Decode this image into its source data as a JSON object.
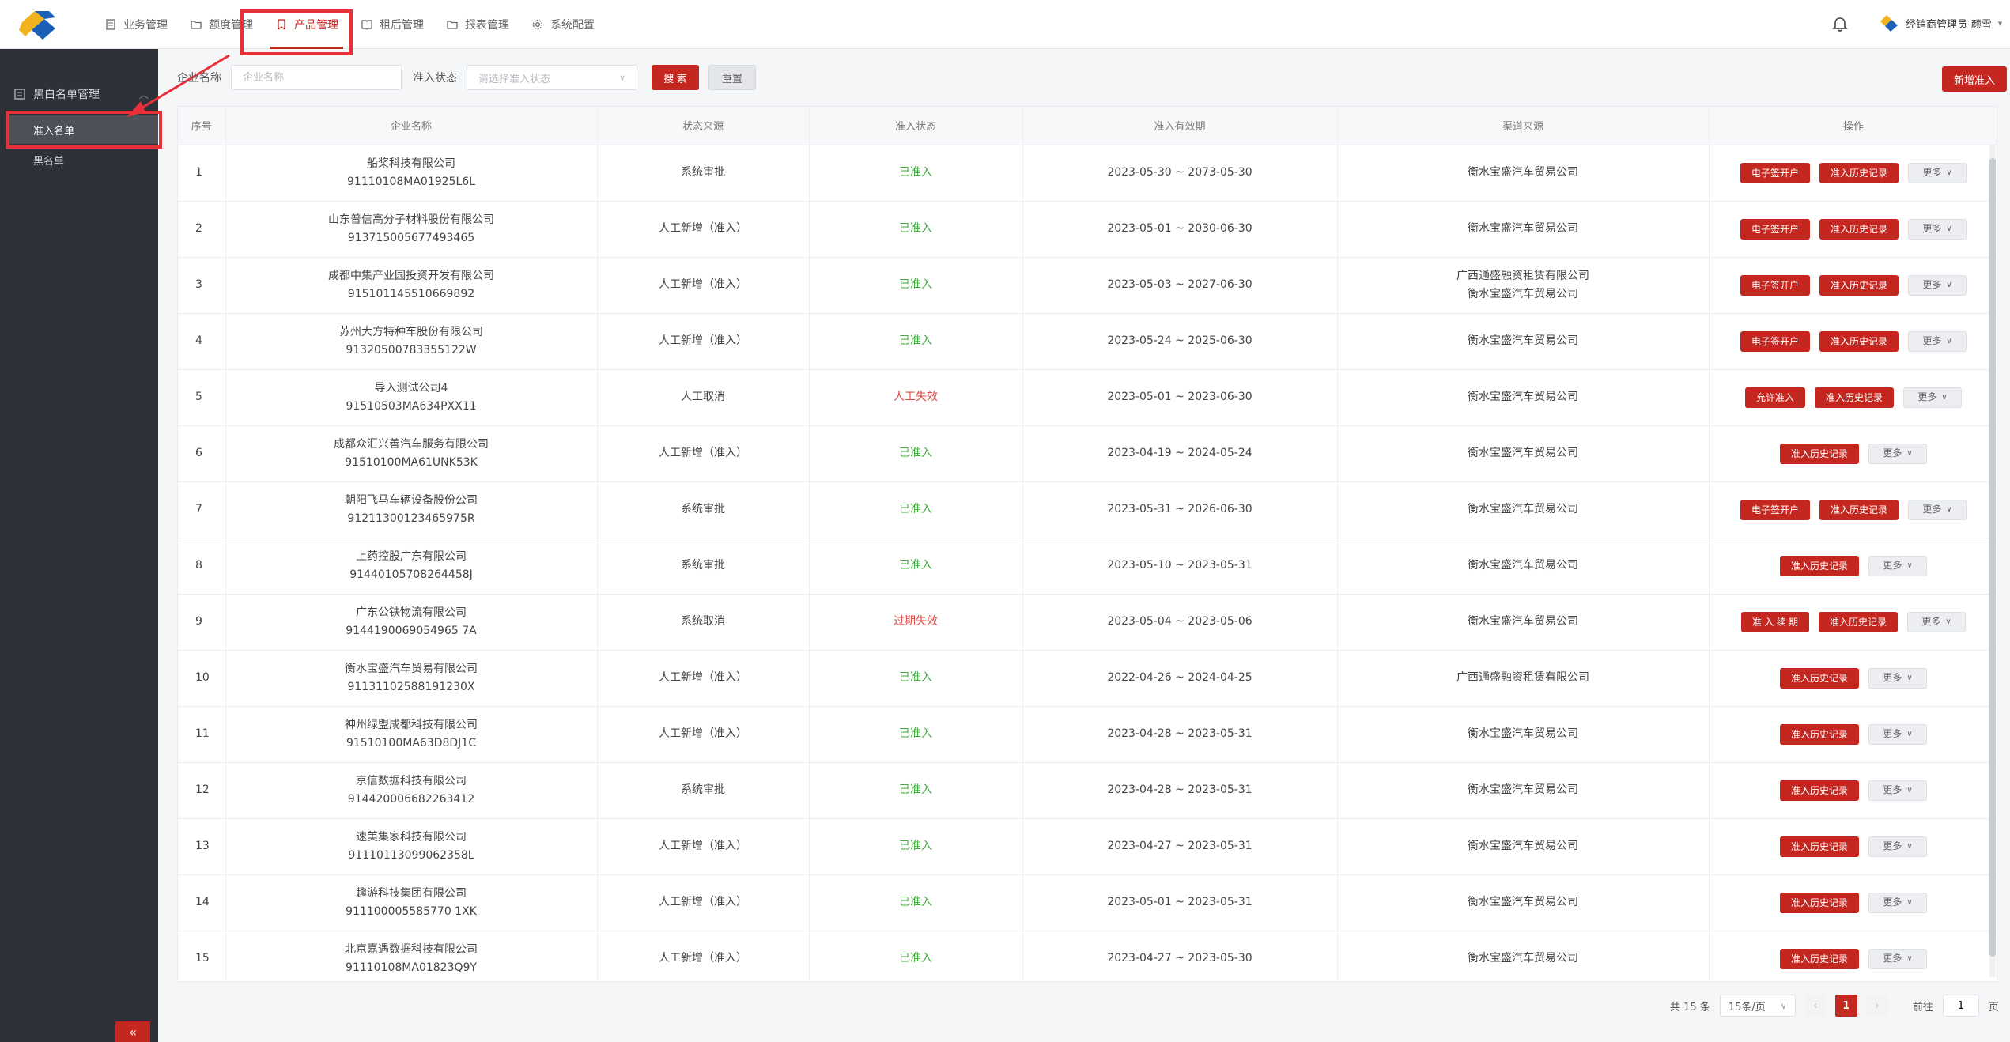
{
  "header": {
    "nav": [
      {
        "label": "业务管理",
        "icon": "document-icon"
      },
      {
        "label": "额度管理",
        "icon": "folder-icon"
      },
      {
        "label": "产品管理",
        "icon": "bookmark-icon",
        "active": true
      },
      {
        "label": "租后管理",
        "icon": "book-icon"
      },
      {
        "label": "报表管理",
        "icon": "folder-icon"
      },
      {
        "label": "系统配置",
        "icon": "gear-icon"
      }
    ],
    "user_name": "经销商管理员-颜雪"
  },
  "sidebar": {
    "group_label": "黑白名单管理",
    "items": [
      {
        "label": "准入名单",
        "active": true
      },
      {
        "label": "黑名单"
      }
    ],
    "collapse_label": "«"
  },
  "search": {
    "company_label": "企业名称",
    "company_placeholder": "企业名称",
    "status_label": "准入状态",
    "status_placeholder": "请选择准入状态",
    "search_btn": "搜 索",
    "reset_btn": "重置",
    "new_btn": "新增准入"
  },
  "table": {
    "headers": [
      "序号",
      "企业名称",
      "状态来源",
      "准入状态",
      "准入有效期",
      "渠道来源",
      "操作"
    ],
    "more_label": "更多",
    "rows": [
      {
        "no": "1",
        "name": "船桨科技有限公司",
        "code": "91110108MA01925L6L",
        "source": "系统审批",
        "status": "已准入",
        "status_type": "ok",
        "period": "2023-05-30 ~ 2073-05-30",
        "channel": [
          "衡水宝盛汽车贸易公司"
        ],
        "actions": [
          "电子签开户",
          "准入历史记录"
        ]
      },
      {
        "no": "2",
        "name": "山东普信高分子材料股份有限公司",
        "code": "913715005677493465",
        "source": "人工新增（准入）",
        "status": "已准入",
        "status_type": "ok",
        "period": "2023-05-01 ~ 2030-06-30",
        "channel": [
          "衡水宝盛汽车贸易公司"
        ],
        "actions": [
          "电子签开户",
          "准入历史记录"
        ]
      },
      {
        "no": "3",
        "name": "成都中集产业园投资开发有限公司",
        "code": "915101145510669892",
        "source": "人工新增（准入）",
        "status": "已准入",
        "status_type": "ok",
        "period": "2023-05-03 ~ 2027-06-30",
        "channel": [
          "广西通盛融资租赁有限公司",
          "衡水宝盛汽车贸易公司"
        ],
        "actions": [
          "电子签开户",
          "准入历史记录"
        ]
      },
      {
        "no": "4",
        "name": "苏州大方特种车股份有限公司",
        "code": "91320500783355122W",
        "source": "人工新增（准入）",
        "status": "已准入",
        "status_type": "ok",
        "period": "2023-05-24 ~ 2025-06-30",
        "channel": [
          "衡水宝盛汽车贸易公司"
        ],
        "actions": [
          "电子签开户",
          "准入历史记录"
        ]
      },
      {
        "no": "5",
        "name": "导入测试公司4",
        "code": "91510503MA634PXX11",
        "source": "人工取消",
        "status": "人工失效",
        "status_type": "bad",
        "period": "2023-05-01 ~ 2023-06-30",
        "channel": [
          "衡水宝盛汽车贸易公司"
        ],
        "actions": [
          "允许准入",
          "准入历史记录"
        ]
      },
      {
        "no": "6",
        "name": "成都众汇兴善汽车服务有限公司",
        "code": "91510100MA61UNK53K",
        "source": "人工新增（准入）",
        "status": "已准入",
        "status_type": "ok",
        "period": "2023-04-19 ~ 2024-05-24",
        "channel": [
          "衡水宝盛汽车贸易公司"
        ],
        "actions": [
          "准入历史记录"
        ]
      },
      {
        "no": "7",
        "name": "朝阳飞马车辆设备股份公司",
        "code": "91211300123465975R",
        "source": "系统审批",
        "status": "已准入",
        "status_type": "ok",
        "period": "2023-05-31 ~ 2026-06-30",
        "channel": [
          "衡水宝盛汽车贸易公司"
        ],
        "actions": [
          "电子签开户",
          "准入历史记录"
        ]
      },
      {
        "no": "8",
        "name": "上药控股广东有限公司",
        "code": "91440105708264458J",
        "source": "系统审批",
        "status": "已准入",
        "status_type": "ok",
        "period": "2023-05-10 ~ 2023-05-31",
        "channel": [
          "衡水宝盛汽车贸易公司"
        ],
        "actions": [
          "准入历史记录"
        ]
      },
      {
        "no": "9",
        "name": "广东公铁物流有限公司",
        "code": "9144190069054965 7A",
        "source": "系统取消",
        "status": "过期失效",
        "status_type": "bad",
        "period": "2023-05-04 ~ 2023-05-06",
        "channel": [
          "衡水宝盛汽车贸易公司"
        ],
        "actions": [
          "准 入 续 期",
          "准入历史记录"
        ]
      },
      {
        "no": "10",
        "name": "衡水宝盛汽车贸易有限公司",
        "code": "91131102588191230X",
        "source": "人工新增（准入）",
        "status": "已准入",
        "status_type": "ok",
        "period": "2022-04-26 ~ 2024-04-25",
        "channel": [
          "广西通盛融资租赁有限公司"
        ],
        "actions": [
          "准入历史记录"
        ]
      },
      {
        "no": "11",
        "name": "神州绿盟成都科技有限公司",
        "code": "91510100MA63D8DJ1C",
        "source": "人工新增（准入）",
        "status": "已准入",
        "status_type": "ok",
        "period": "2023-04-28 ~ 2023-05-31",
        "channel": [
          "衡水宝盛汽车贸易公司"
        ],
        "actions": [
          "准入历史记录"
        ]
      },
      {
        "no": "12",
        "name": "京信数据科技有限公司",
        "code": "914420006682263412",
        "source": "系统审批",
        "status": "已准入",
        "status_type": "ok",
        "period": "2023-04-28 ~ 2023-05-31",
        "channel": [
          "衡水宝盛汽车贸易公司"
        ],
        "actions": [
          "准入历史记录"
        ]
      },
      {
        "no": "13",
        "name": "速美集家科技有限公司",
        "code": "91110113099062358L",
        "source": "人工新增（准入）",
        "status": "已准入",
        "status_type": "ok",
        "period": "2023-04-27 ~ 2023-05-31",
        "channel": [
          "衡水宝盛汽车贸易公司"
        ],
        "actions": [
          "准入历史记录"
        ]
      },
      {
        "no": "14",
        "name": "趣游科技集团有限公司",
        "code": "911100005585770 1XK",
        "source": "人工新增（准入）",
        "status": "已准入",
        "status_type": "ok",
        "period": "2023-05-01 ~ 2023-05-31",
        "channel": [
          "衡水宝盛汽车贸易公司"
        ],
        "actions": [
          "准入历史记录"
        ]
      },
      {
        "no": "15",
        "name": "北京嘉遇数据科技有限公司",
        "code": "91110108MA01823Q9Y",
        "source": "人工新增（准入）",
        "status": "已准入",
        "status_type": "ok",
        "period": "2023-04-27 ~ 2023-05-30",
        "channel": [
          "衡水宝盛汽车贸易公司"
        ],
        "actions": [
          "准入历史记录"
        ]
      }
    ]
  },
  "pagination": {
    "total": "共 15 条",
    "page_size": "15条/页",
    "current": "1",
    "goto_label": "前往",
    "goto_value": "1",
    "page_unit": "页"
  },
  "colors": {
    "accent": "#c4271f",
    "ok": "#3fae3c",
    "bad": "#e04b44",
    "sidebar": "#2d3138"
  }
}
